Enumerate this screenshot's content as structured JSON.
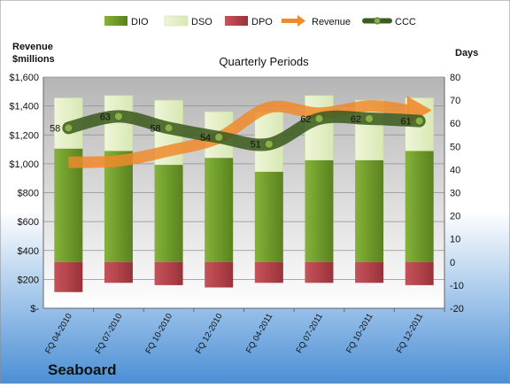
{
  "chart_data": {
    "type": "bar",
    "title": "Quarterly Periods",
    "company": "Seaboard",
    "left_axis_title_line1": "Revenue",
    "left_axis_title_line2": "$millions",
    "right_axis_title": "Days",
    "categories": [
      "FQ 04-2010",
      "FQ 07-2010",
      "FQ 10-2010",
      "FQ 12-2010",
      "FQ 04-2011",
      "FQ 07-2011",
      "FQ 10-2011",
      "FQ 12-2011"
    ],
    "left_axis": {
      "min": 0,
      "max": 1600,
      "step": 200,
      "tick_labels": [
        "$-",
        "$200",
        "$400",
        "$600",
        "$800",
        "$1,000",
        "$1,200",
        "$1,400",
        "$1,600"
      ]
    },
    "right_axis": {
      "min": -20,
      "max": 80,
      "step": 10,
      "tick_labels": [
        "-20",
        "-10",
        "0",
        "10",
        "20",
        "30",
        "40",
        "50",
        "60",
        "70",
        "80"
      ]
    },
    "legend_position": "top",
    "legend": [
      "DIO",
      "DSO",
      "DPO",
      "Revenue",
      "CCC"
    ],
    "series": [
      {
        "name": "DIO",
        "axis": "right",
        "values": [
          49,
          48,
          42,
          45,
          39,
          44,
          44,
          48
        ]
      },
      {
        "name": "DSO",
        "axis": "right",
        "values": [
          22,
          24,
          28,
          20,
          26,
          28,
          26,
          23
        ]
      },
      {
        "name": "DPO",
        "axis": "right",
        "values": [
          -13,
          -9,
          -10,
          -11,
          -9,
          -9,
          -9,
          -10
        ]
      },
      {
        "name": "Revenue",
        "axis": "left",
        "values": [
          1010,
          1020,
          1090,
          1180,
          1390,
          1350,
          1400,
          1370
        ]
      },
      {
        "name": "CCC",
        "axis": "right",
        "values": [
          58,
          63,
          58,
          54,
          51,
          62,
          62,
          61
        ],
        "labels": [
          "58",
          "63",
          "58",
          "54",
          "51",
          "62",
          "62",
          "61"
        ]
      }
    ],
    "colors": {
      "DIO": "#6e9a2a",
      "DSO": "#e2efc4",
      "DPO": "#b3424a",
      "Revenue": "#f08a2c",
      "CCC": "#3d5c20",
      "plot_bg_top": "#b5b5b5",
      "plot_bg_bottom": "#ffffff",
      "page_bg_top": "#ffffff",
      "page_bg_bottom": "#4a8fd6"
    }
  }
}
